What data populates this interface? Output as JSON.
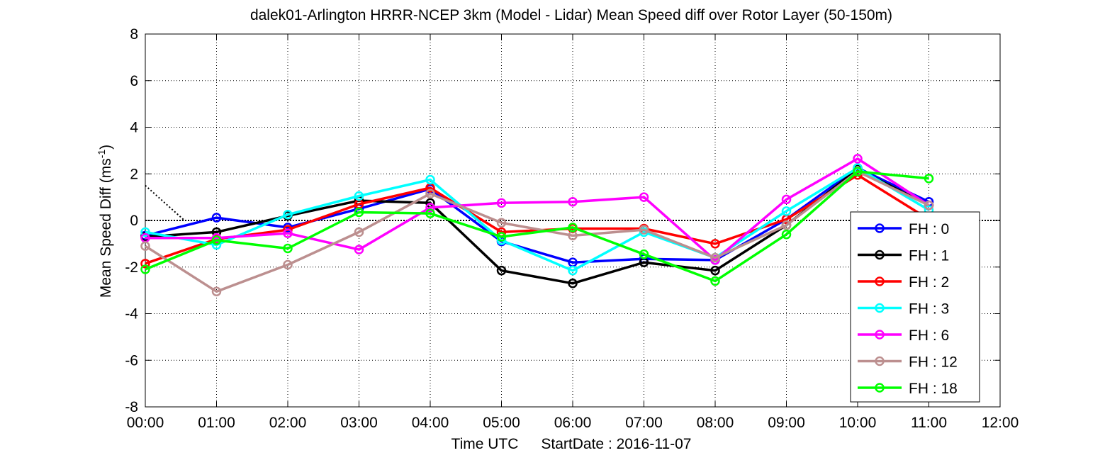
{
  "chart_data": {
    "type": "line",
    "title": "dalek01-Arlington HRRR-NCEP 3km (Model - Lidar) Mean Speed diff over Rotor Layer (50-150m)",
    "xlabel_parts": [
      "Time UTC",
      "StartDate : 2016-11-07"
    ],
    "ylabel_base": "Mean Speed Diff (ms",
    "ylabel_sup": "-1",
    "ylabel_close": ")",
    "x_tick_labels": [
      "00:00",
      "01:00",
      "02:00",
      "03:00",
      "04:00",
      "05:00",
      "06:00",
      "07:00",
      "08:00",
      "09:00",
      "10:00",
      "11:00",
      "12:00"
    ],
    "xlim": [
      0,
      12
    ],
    "ylim": [
      -8,
      8
    ],
    "y_ticks": [
      -8,
      -6,
      -4,
      -2,
      0,
      2,
      4,
      6,
      8
    ],
    "y_tick_labels": [
      "-8",
      "-6",
      "-4",
      "-2",
      "0",
      "2",
      "4",
      "6",
      "8"
    ],
    "grid": true,
    "legend_position": "bottom-right",
    "zero_line": {
      "style": "dotted",
      "color": "#000000",
      "y": 0
    },
    "stray_line": {
      "style": "dotted",
      "color": "#000000",
      "points": [
        [
          0,
          1.5
        ],
        [
          0.55,
          0
        ]
      ]
    },
    "series": [
      {
        "name": "FH : 0",
        "color": "#0000ff",
        "x": [
          0,
          1,
          2,
          3,
          4,
          5,
          6,
          7,
          8,
          9,
          10,
          11
        ],
        "values": [
          -0.65,
          0.12,
          -0.3,
          0.5,
          1.35,
          -0.9,
          -1.8,
          -1.65,
          -1.7,
          0.05,
          2.25,
          0.8
        ]
      },
      {
        "name": "FH : 1",
        "color": "#000000",
        "x": [
          0,
          1,
          2,
          3,
          4,
          5,
          6,
          7,
          8,
          9,
          10,
          11
        ],
        "values": [
          -0.7,
          -0.5,
          0.2,
          0.85,
          0.75,
          -2.15,
          -2.7,
          -1.8,
          -2.15,
          -0.2,
          2.2,
          0.65
        ]
      },
      {
        "name": "FH : 2",
        "color": "#ff0000",
        "x": [
          0,
          1,
          2,
          3,
          4,
          5,
          6,
          7,
          8,
          9,
          10,
          11
        ],
        "values": [
          -1.85,
          -0.8,
          -0.4,
          0.7,
          1.4,
          -0.5,
          -0.35,
          -0.35,
          -1.0,
          0.05,
          1.95,
          0.05
        ]
      },
      {
        "name": "FH : 3",
        "color": "#00ffff",
        "x": [
          0,
          1,
          2,
          3,
          4,
          5,
          6,
          7,
          8,
          9,
          10,
          11
        ],
        "values": [
          -0.5,
          -1.05,
          0.25,
          1.05,
          1.75,
          -0.85,
          -2.15,
          -0.5,
          -1.6,
          0.4,
          2.25,
          0.45
        ]
      },
      {
        "name": "FH : 6",
        "color": "#ff00ff",
        "x": [
          0,
          1,
          2,
          3,
          4,
          5,
          6,
          7,
          8,
          9,
          10,
          11
        ],
        "values": [
          -0.75,
          -0.75,
          -0.55,
          -1.25,
          0.55,
          0.75,
          0.8,
          1.0,
          -1.7,
          0.9,
          2.65,
          0.65
        ]
      },
      {
        "name": "FH : 12",
        "color": "#bc8f8f",
        "x": [
          0,
          1,
          2,
          3,
          4,
          5,
          6,
          7,
          8,
          9,
          10,
          11
        ],
        "values": [
          -1.1,
          -3.05,
          -1.9,
          -0.5,
          1.15,
          -0.1,
          -0.65,
          -0.4,
          -1.6,
          -0.2,
          2.1,
          0.65
        ]
      },
      {
        "name": "FH : 18",
        "color": "#00ff00",
        "x": [
          0,
          1,
          2,
          3,
          4,
          5,
          6,
          7,
          8,
          9,
          10,
          11
        ],
        "values": [
          -2.1,
          -0.85,
          -1.2,
          0.35,
          0.3,
          -0.7,
          -0.3,
          -1.45,
          -2.6,
          -0.6,
          2.1,
          1.8
        ]
      }
    ]
  }
}
